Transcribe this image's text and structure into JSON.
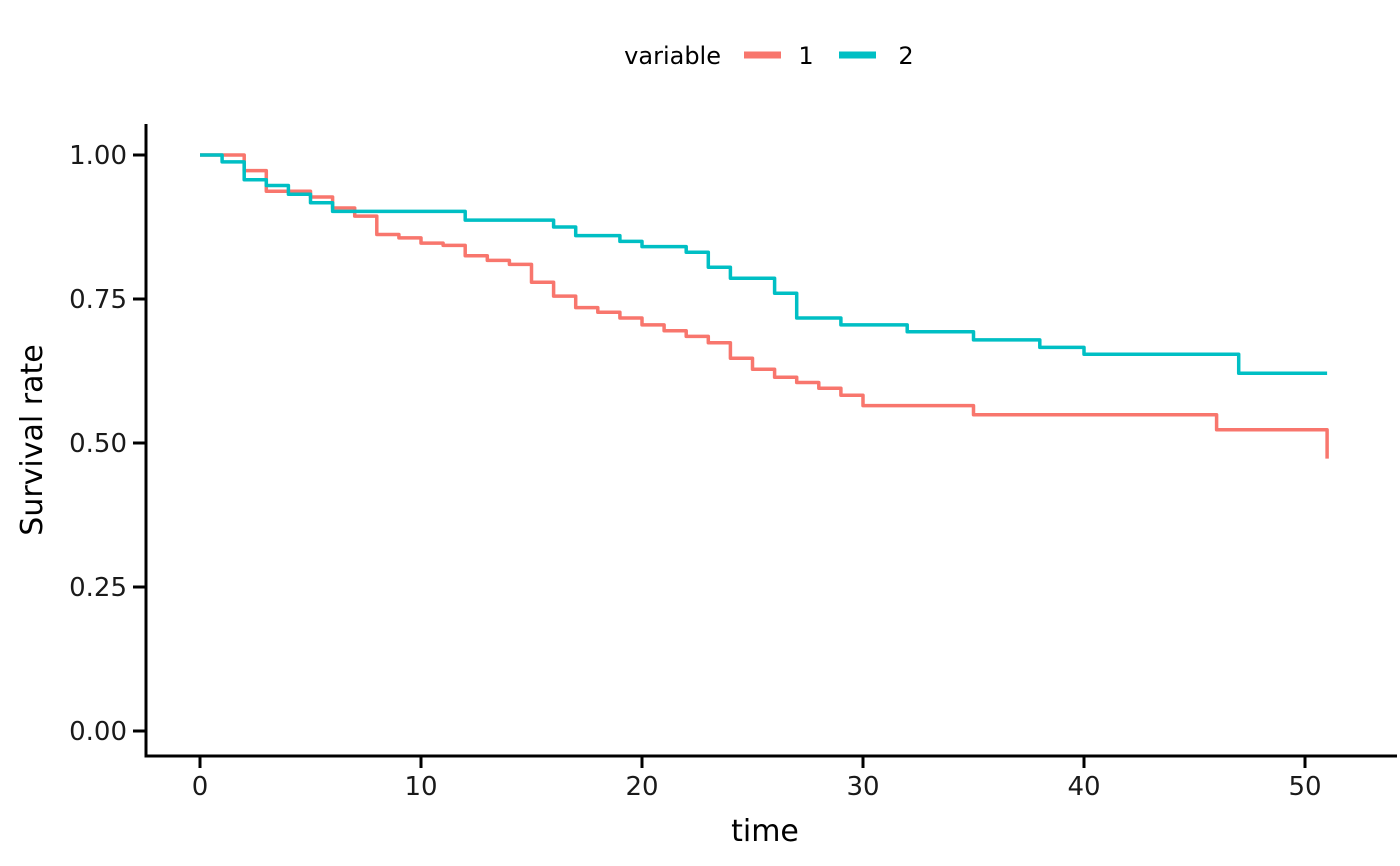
{
  "chart_data": {
    "type": "line",
    "variant": "kaplan-meier-step",
    "title": "",
    "xlabel": "time",
    "ylabel": "Survival rate",
    "xlim": [
      0,
      51
    ],
    "ylim": [
      0.0,
      1.0
    ],
    "xticks": [
      0,
      10,
      20,
      30,
      40,
      50
    ],
    "yticks": [
      0.0,
      0.25,
      0.5,
      0.75,
      1.0
    ],
    "ytick_labels": [
      "0.00",
      "0.25",
      "0.50",
      "0.75",
      "1.00"
    ],
    "grid": false,
    "background": "#FFFFFF",
    "colors": {
      "axis": "#000000",
      "text": "#1A1A1A",
      "series1": "#F8766D",
      "series2": "#00BFC4"
    },
    "legend": {
      "title": "variable",
      "position": "top-center"
    },
    "series": [
      {
        "name": "1",
        "color": "#F8766D",
        "end_time": 51,
        "points": [
          [
            0,
            1.0
          ],
          [
            2,
            0.973
          ],
          [
            3,
            0.937
          ],
          [
            5,
            0.927
          ],
          [
            6,
            0.908
          ],
          [
            7,
            0.894
          ],
          [
            8,
            0.862
          ],
          [
            9,
            0.856
          ],
          [
            10,
            0.847
          ],
          [
            11,
            0.843
          ],
          [
            12,
            0.825
          ],
          [
            13,
            0.817
          ],
          [
            14,
            0.81
          ],
          [
            15,
            0.779
          ],
          [
            16,
            0.755
          ],
          [
            17,
            0.735
          ],
          [
            18,
            0.727
          ],
          [
            19,
            0.717
          ],
          [
            20,
            0.705
          ],
          [
            21,
            0.695
          ],
          [
            22,
            0.685
          ],
          [
            23,
            0.674
          ],
          [
            24,
            0.647
          ],
          [
            25,
            0.628
          ],
          [
            26,
            0.614
          ],
          [
            27,
            0.605
          ],
          [
            28,
            0.595
          ],
          [
            29,
            0.583
          ],
          [
            30,
            0.565
          ],
          [
            35,
            0.549
          ],
          [
            46,
            0.523
          ],
          [
            51,
            0.473
          ]
        ]
      },
      {
        "name": "2",
        "color": "#00BFC4",
        "end_time": 51,
        "points": [
          [
            0,
            1.0
          ],
          [
            1,
            0.988
          ],
          [
            2,
            0.957
          ],
          [
            3,
            0.947
          ],
          [
            4,
            0.932
          ],
          [
            5,
            0.917
          ],
          [
            6,
            0.902
          ],
          [
            12,
            0.887
          ],
          [
            16,
            0.875
          ],
          [
            17,
            0.86
          ],
          [
            19,
            0.85
          ],
          [
            20,
            0.841
          ],
          [
            22,
            0.831
          ],
          [
            23,
            0.805
          ],
          [
            24,
            0.786
          ],
          [
            26,
            0.76
          ],
          [
            27,
            0.717
          ],
          [
            29,
            0.705
          ],
          [
            32,
            0.693
          ],
          [
            35,
            0.679
          ],
          [
            38,
            0.666
          ],
          [
            40,
            0.654
          ],
          [
            47,
            0.621
          ]
        ]
      }
    ]
  }
}
